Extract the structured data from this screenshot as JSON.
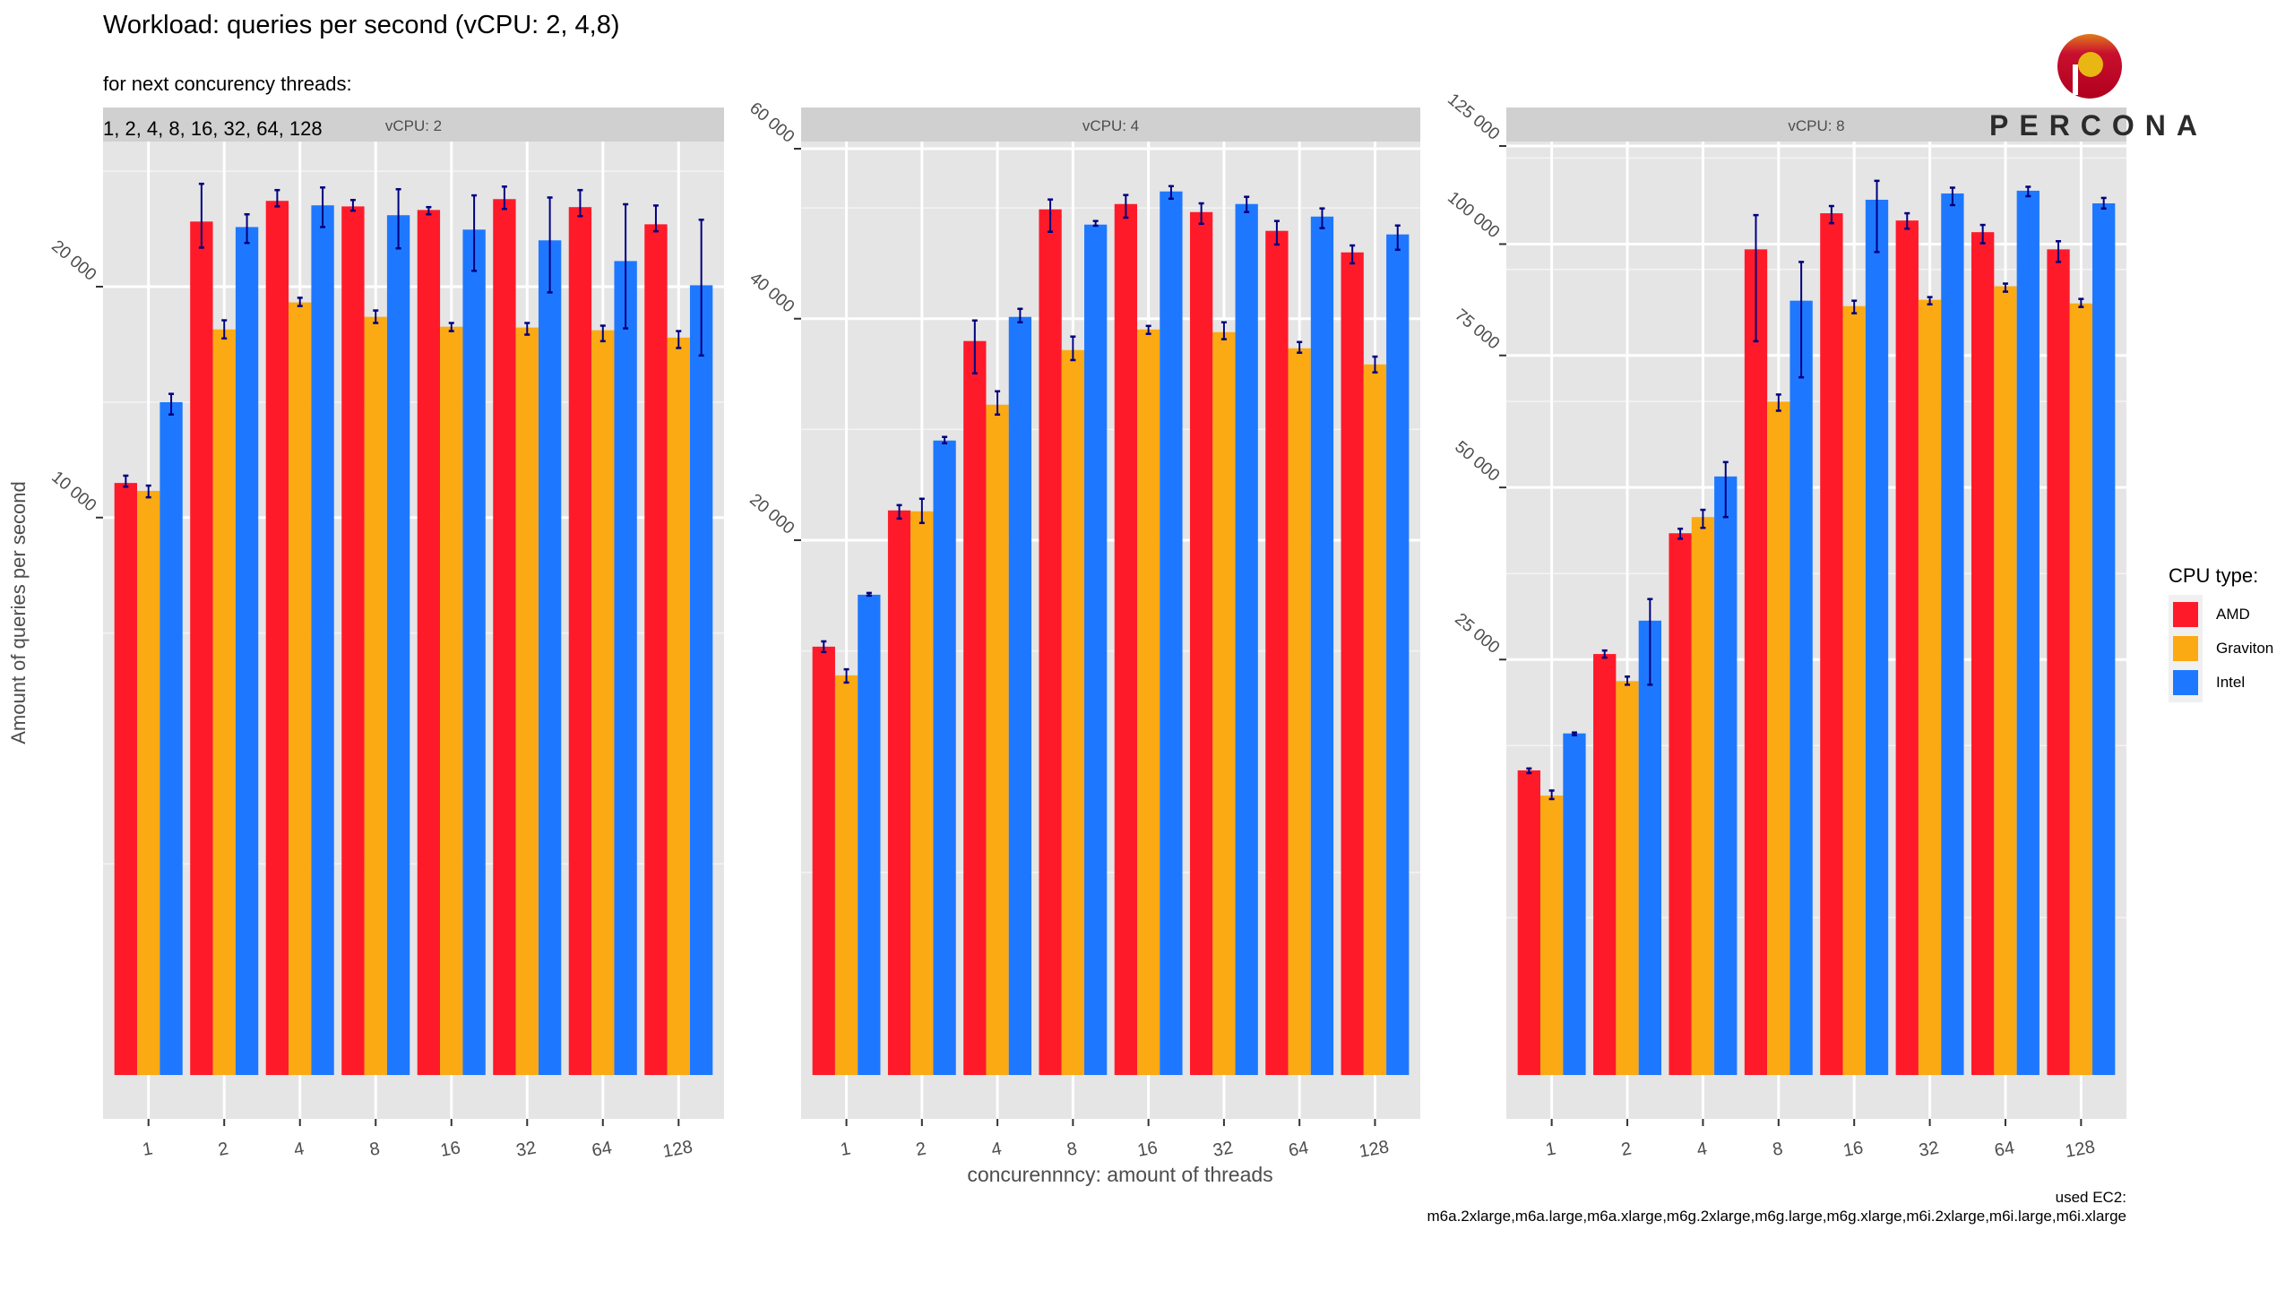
{
  "title": "Workload: queries per second (vCPU: 2, 4,8)",
  "subtitle_line1": "for next concurency threads:",
  "subtitle_line2": "1, 2, 4, 8, 16, 32, 64, 128",
  "logo": {
    "brand_text": "PERCONA"
  },
  "caption_line1": "used EC2:",
  "caption_line2": "m6a.2xlarge,m6a.large,m6a.xlarge,m6g.2xlarge,m6g.large,m6g.xlarge,m6i.2xlarge,m6i.large,m6i.xlarge",
  "legend": {
    "title": "CPU type:",
    "items": [
      {
        "label": "AMD",
        "color": "#FF1A2A"
      },
      {
        "label": "Graviton",
        "color": "#FBAA14"
      },
      {
        "label": "Intel",
        "color": "#1E78FF"
      }
    ]
  },
  "chart_data": {
    "type": "bar",
    "xlabel": "concurennncy: amount of threads",
    "ylabel": "Amount of queries per second",
    "y_scale": "sqrt",
    "errorbar_color": "#000080",
    "categories": [
      "1",
      "2",
      "4",
      "8",
      "16",
      "32",
      "64",
      "128"
    ],
    "series_names": [
      "AMD",
      "Graviton",
      "Intel"
    ],
    "panels": [
      {
        "strip": "vCPU: 2",
        "ylim": [
          0,
          28200
        ],
        "yticks": [
          10000,
          20000
        ],
        "ytick_labels": [
          "10 000",
          "20 000"
        ],
        "series": [
          {
            "name": "AMD",
            "values": [
              11280,
              23440,
              24590,
              24280,
              24080,
              24690,
              24240,
              23290
            ],
            "err_low": [
              11140,
              22030,
              24280,
              24040,
              23840,
              24140,
              23740,
              22910
            ],
            "err_high": [
              11560,
              25560,
              25200,
              24640,
              24240,
              25400,
              25200,
              24330
            ]
          },
          {
            "name": "Graviton",
            "values": [
              10980,
              17890,
              19210,
              18500,
              18020,
              17980,
              17850,
              17500
            ],
            "err_low": [
              10740,
              17460,
              19030,
              18200,
              17810,
              17640,
              17330,
              17010
            ],
            "err_high": [
              11180,
              18330,
              19440,
              18810,
              18200,
              18200,
              18070,
              17810
            ]
          },
          {
            "name": "Intel",
            "values": [
              14570,
              23140,
              24340,
              23790,
              23000,
              22420,
              21320,
              20070
            ],
            "err_low": [
              14040,
              22280,
              23140,
              21990,
              20810,
              19710,
              17940,
              16660
            ],
            "err_high": [
              14930,
              23840,
              25350,
              25250,
              24900,
              24780,
              24400,
              23540
            ]
          }
        ]
      },
      {
        "strip": "vCPU: 4",
        "ylim": [
          0,
          61100
        ],
        "yticks": [
          20000,
          40000,
          60000
        ],
        "ytick_labels": [
          "20 000",
          "40 000",
          "60 000"
        ],
        "series": [
          {
            "name": "AMD",
            "values": [
              12830,
              22290,
              37670,
              52400,
              53050,
              52070,
              49830,
              47320
            ],
            "err_low": [
              12510,
              21650,
              34430,
              49720,
              51400,
              50670,
              48230,
              46070
            ],
            "err_high": [
              13150,
              22710,
              39810,
              53600,
              54150,
              53130,
              51000,
              48120
            ]
          },
          {
            "name": "Graviton",
            "values": [
              11170,
              22220,
              31420,
              36750,
              38870,
              38590,
              36930,
              35310
            ],
            "err_low": [
              10770,
              21310,
              30500,
              35740,
              38410,
              37860,
              36480,
              34520
            ],
            "err_high": [
              11510,
              23220,
              32690,
              38130,
              39240,
              39620,
              37570,
              36090
            ]
          },
          {
            "name": "Intel",
            "values": [
              16130,
              28150,
              40190,
              50570,
              54590,
              53050,
              51530,
              49410
            ],
            "err_low": [
              16070,
              27910,
              39620,
              50440,
              53700,
              52070,
              50150,
              47620
            ],
            "err_high": [
              16250,
              28470,
              41050,
              51000,
              55250,
              53930,
              52510,
              50460
            ]
          }
        ]
      },
      {
        "strip": "vCPU: 8",
        "ylim": [
          0,
          128000
        ],
        "yticks": [
          25000,
          50000,
          75000,
          100000,
          125000
        ],
        "ytick_labels": [
          "25 000",
          "50 000",
          "75 000",
          "100 000",
          "125 000"
        ],
        "series": [
          {
            "name": "AMD",
            "values": [
              13440,
              25670,
              42510,
              98740,
              107560,
              105760,
              102890,
              98740
            ],
            "err_low": [
              13200,
              25230,
              41660,
              77980,
              105100,
              103740,
              100210,
              95750
            ],
            "err_high": [
              13610,
              26100,
              43220,
              107100,
              109370,
              107560,
              104670,
              100690
            ]
          },
          {
            "name": "Graviton",
            "values": [
              11310,
              22470,
              45090,
              65680,
              85630,
              87040,
              90110,
              86230
            ],
            "err_low": [
              11030,
              22060,
              43360,
              63910,
              84050,
              86030,
              88880,
              85440
            ],
            "err_high": [
              11720,
              22990,
              46270,
              67070,
              86840,
              87650,
              90720,
              87240
            ]
          },
          {
            "name": "Intel",
            "values": [
              16900,
              29900,
              51890,
              86840,
              110960,
              112560,
              113260,
              110050
            ],
            "err_low": [
              16730,
              22060,
              45090,
              70500,
              98100,
              109600,
              111860,
              108750
            ],
            "err_high": [
              16990,
              32810,
              54410,
              95750,
              115810,
              114040,
              114270,
              111420
            ]
          }
        ]
      }
    ]
  }
}
